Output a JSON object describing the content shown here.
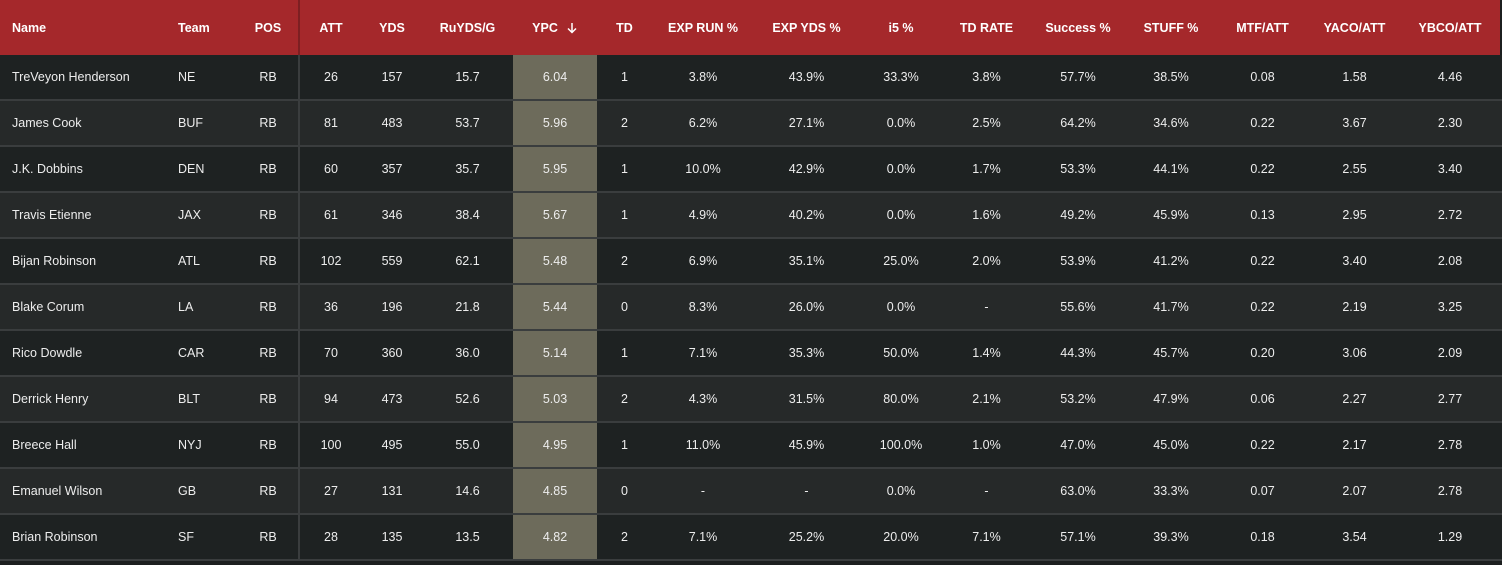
{
  "columns": {
    "name": "Name",
    "team": "Team",
    "pos": "POS",
    "att": "ATT",
    "yds": "YDS",
    "rug": "RuYDS/G",
    "ypc": "YPC",
    "td": "TD",
    "exr": "EXP RUN %",
    "exy": "EXP YDS %",
    "i5": "i5 %",
    "tdr": "TD RATE",
    "suc": "Success %",
    "stu": "STUFF %",
    "mtf": "MTF/ATT",
    "yaco": "YACO/ATT",
    "ybco": "YBCO/ATT"
  },
  "sort": {
    "column": "YPC",
    "direction": "descending",
    "icon": "arrow-down-icon"
  },
  "colors": {
    "header_bg": "#a5282b",
    "sorted_col_bg": "#6d6b5b",
    "row_a": "#1e2222",
    "row_b": "#262929"
  },
  "rows": [
    [
      "TreVeyon Henderson",
      "NE",
      "RB",
      "26",
      "157",
      "15.7",
      "6.04",
      "1",
      "3.8%",
      "43.9%",
      "33.3%",
      "3.8%",
      "57.7%",
      "38.5%",
      "0.08",
      "1.58",
      "4.46"
    ],
    [
      "James Cook",
      "BUF",
      "RB",
      "81",
      "483",
      "53.7",
      "5.96",
      "2",
      "6.2%",
      "27.1%",
      "0.0%",
      "2.5%",
      "64.2%",
      "34.6%",
      "0.22",
      "3.67",
      "2.30"
    ],
    [
      "J.K. Dobbins",
      "DEN",
      "RB",
      "60",
      "357",
      "35.7",
      "5.95",
      "1",
      "10.0%",
      "42.9%",
      "0.0%",
      "1.7%",
      "53.3%",
      "44.1%",
      "0.22",
      "2.55",
      "3.40"
    ],
    [
      "Travis Etienne",
      "JAX",
      "RB",
      "61",
      "346",
      "38.4",
      "5.67",
      "1",
      "4.9%",
      "40.2%",
      "0.0%",
      "1.6%",
      "49.2%",
      "45.9%",
      "0.13",
      "2.95",
      "2.72"
    ],
    [
      "Bijan Robinson",
      "ATL",
      "RB",
      "102",
      "559",
      "62.1",
      "5.48",
      "2",
      "6.9%",
      "35.1%",
      "25.0%",
      "2.0%",
      "53.9%",
      "41.2%",
      "0.22",
      "3.40",
      "2.08"
    ],
    [
      "Blake Corum",
      "LA",
      "RB",
      "36",
      "196",
      "21.8",
      "5.44",
      "0",
      "8.3%",
      "26.0%",
      "0.0%",
      "-",
      "55.6%",
      "41.7%",
      "0.22",
      "2.19",
      "3.25"
    ],
    [
      "Rico Dowdle",
      "CAR",
      "RB",
      "70",
      "360",
      "36.0",
      "5.14",
      "1",
      "7.1%",
      "35.3%",
      "50.0%",
      "1.4%",
      "44.3%",
      "45.7%",
      "0.20",
      "3.06",
      "2.09"
    ],
    [
      "Derrick Henry",
      "BLT",
      "RB",
      "94",
      "473",
      "52.6",
      "5.03",
      "2",
      "4.3%",
      "31.5%",
      "80.0%",
      "2.1%",
      "53.2%",
      "47.9%",
      "0.06",
      "2.27",
      "2.77"
    ],
    [
      "Breece Hall",
      "NYJ",
      "RB",
      "100",
      "495",
      "55.0",
      "4.95",
      "1",
      "11.0%",
      "45.9%",
      "100.0%",
      "1.0%",
      "47.0%",
      "45.0%",
      "0.22",
      "2.17",
      "2.78"
    ],
    [
      "Emanuel Wilson",
      "GB",
      "RB",
      "27",
      "131",
      "14.6",
      "4.85",
      "0",
      "-",
      "-",
      "0.0%",
      "-",
      "63.0%",
      "33.3%",
      "0.07",
      "2.07",
      "2.78"
    ],
    [
      "Brian Robinson",
      "SF",
      "RB",
      "28",
      "135",
      "13.5",
      "4.82",
      "2",
      "7.1%",
      "25.2%",
      "20.0%",
      "7.1%",
      "57.1%",
      "39.3%",
      "0.18",
      "3.54",
      "1.29"
    ]
  ]
}
